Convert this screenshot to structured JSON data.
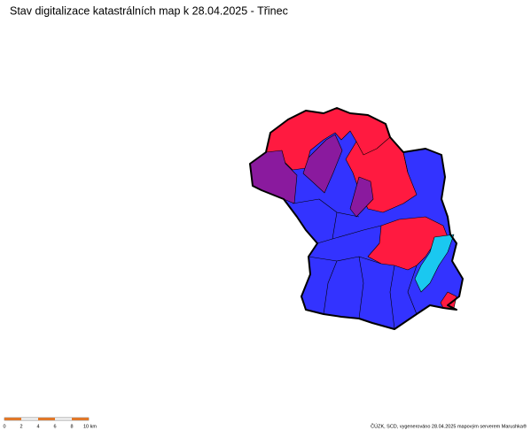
{
  "header": {
    "title": "Stav digitalizace katastrálních map k 28.04.2025 - Třinec"
  },
  "scale_bar": {
    "labels": [
      "0",
      "2",
      "4",
      "6",
      "8",
      "10 km"
    ]
  },
  "footer": {
    "credit": "ČÚZK, SCD, vygenerováno 28.04.2025 mapovým serverem Marushka®"
  }
}
